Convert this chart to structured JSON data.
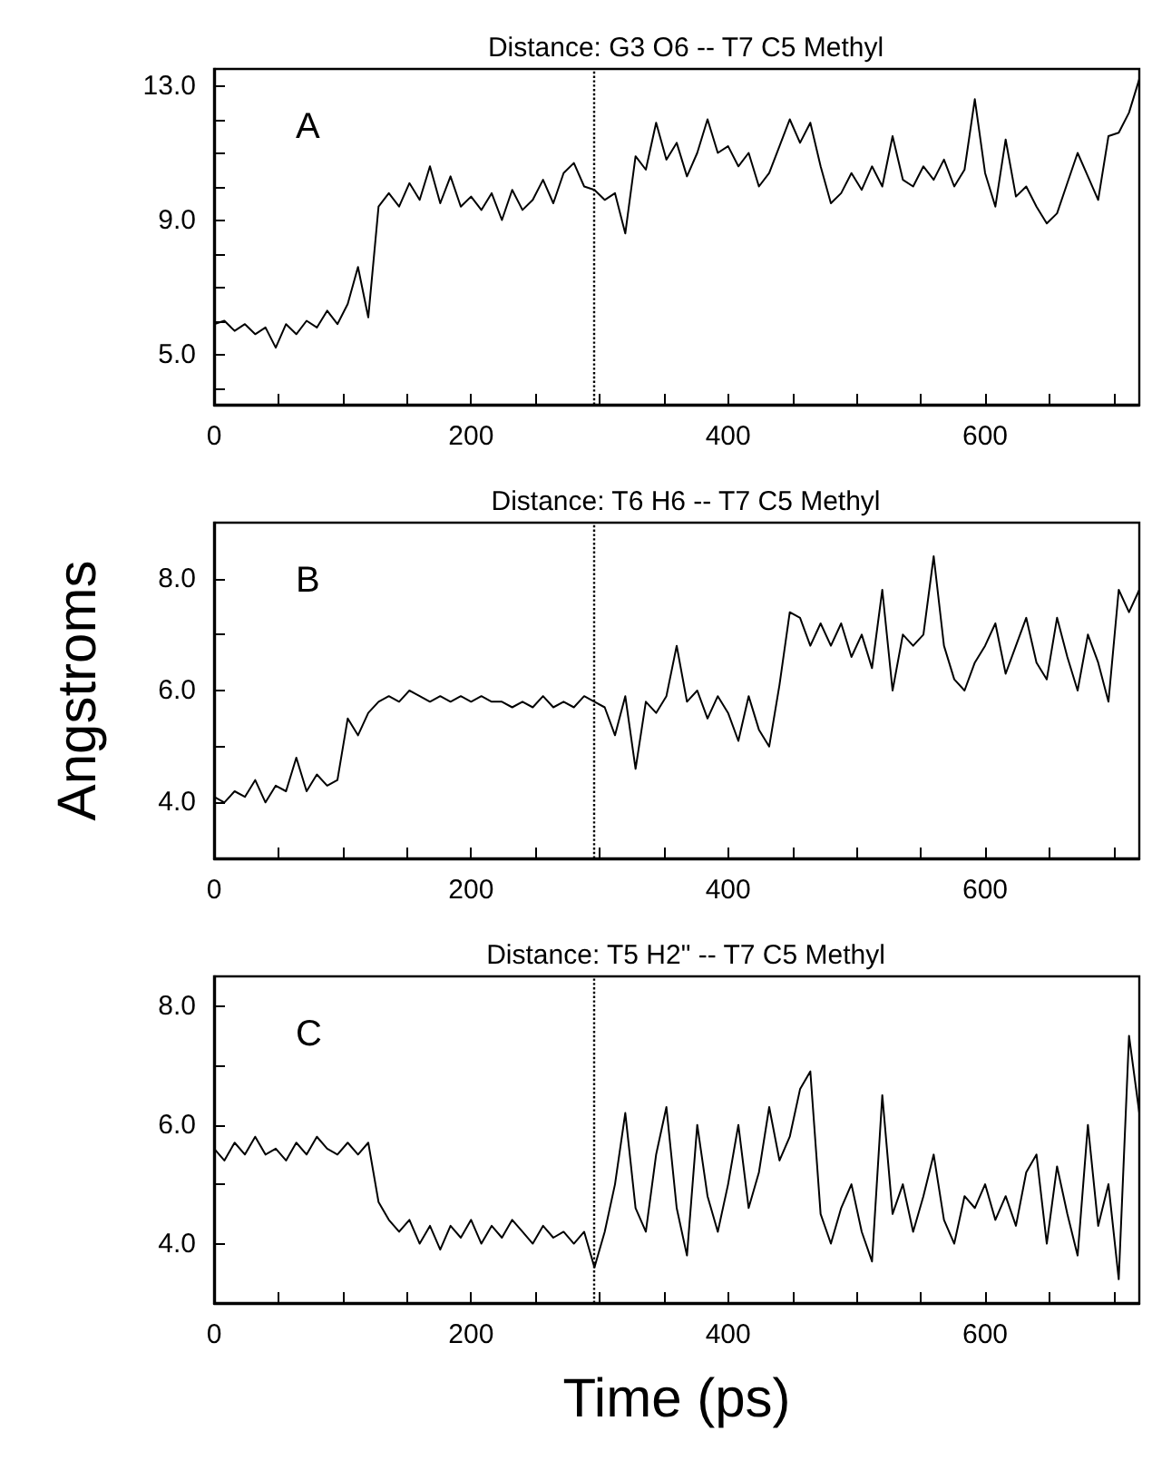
{
  "chart_data": [
    {
      "type": "line",
      "title": "Distance: G3 O6 -- T7 C5 Methyl",
      "annotations": [
        "A"
      ],
      "grid": false,
      "marker": "none",
      "line_style": "solid",
      "x": [
        0,
        8,
        16,
        24,
        32,
        40,
        48,
        56,
        64,
        72,
        80,
        88,
        96,
        104,
        112,
        120,
        128,
        136,
        144,
        152,
        160,
        168,
        176,
        184,
        192,
        200,
        208,
        216,
        224,
        232,
        240,
        248,
        256,
        264,
        272,
        280,
        288,
        296,
        304,
        312,
        320,
        328,
        336,
        344,
        352,
        360,
        368,
        376,
        384,
        392,
        400,
        408,
        416,
        424,
        432,
        440,
        448,
        456,
        464,
        472,
        480,
        488,
        496,
        504,
        512,
        520,
        528,
        536,
        544,
        552,
        560,
        568,
        576,
        584,
        592,
        600,
        608,
        616,
        624,
        632,
        640,
        648,
        656,
        664,
        672,
        680,
        688,
        696,
        704,
        712,
        720
      ],
      "series": [
        {
          "color": "#000000",
          "values": [
            5.9,
            6.0,
            5.7,
            5.9,
            5.6,
            5.8,
            5.2,
            5.9,
            5.6,
            6.0,
            5.8,
            6.3,
            5.9,
            6.5,
            7.6,
            6.1,
            9.4,
            9.8,
            9.4,
            10.1,
            9.6,
            10.6,
            9.5,
            10.3,
            9.4,
            9.7,
            9.3,
            9.8,
            9.0,
            9.9,
            9.3,
            9.6,
            10.2,
            9.5,
            10.4,
            10.7,
            10.0,
            9.9,
            9.6,
            9.8,
            8.6,
            10.9,
            10.5,
            11.9,
            10.8,
            11.3,
            10.3,
            11.0,
            12.0,
            11.0,
            11.2,
            10.6,
            11.0,
            10.0,
            10.4,
            11.2,
            12.0,
            11.3,
            11.9,
            10.6,
            9.5,
            9.8,
            10.4,
            9.9,
            10.6,
            10.0,
            11.5,
            10.2,
            10.0,
            10.6,
            10.2,
            10.8,
            10.0,
            10.5,
            12.6,
            10.4,
            9.4,
            11.4,
            9.7,
            10.0,
            9.4,
            8.9,
            9.2,
            10.1,
            11.0,
            10.3,
            9.6,
            11.5,
            11.6,
            12.2,
            13.2
          ]
        }
      ],
      "xlim": [
        0,
        720
      ],
      "xticks": [
        0,
        {
          "value": 50,
          "label": null
        },
        {
          "value": 100,
          "label": null
        },
        {
          "value": 150,
          "label": null
        },
        200,
        {
          "value": 250,
          "label": null
        },
        {
          "value": 300,
          "label": null
        },
        {
          "value": 350,
          "label": null
        },
        400,
        {
          "value": 450,
          "label": null
        },
        {
          "value": 500,
          "label": null
        },
        {
          "value": 550,
          "label": null
        },
        600,
        {
          "value": 650,
          "label": null
        },
        {
          "value": 700,
          "label": null
        }
      ],
      "ylim": [
        3.5,
        13.5
      ],
      "yticks": [
        {
          "value": 4,
          "label": null
        },
        {
          "value": 5,
          "label": "5.0"
        },
        {
          "value": 6,
          "label": null
        },
        {
          "value": 7,
          "label": null
        },
        {
          "value": 8,
          "label": null
        },
        {
          "value": 9,
          "label": "9.0"
        },
        {
          "value": 10,
          "label": null
        },
        {
          "value": 11,
          "label": null
        },
        {
          "value": 12,
          "label": null
        },
        {
          "value": 13,
          "label": "13.0"
        }
      ],
      "ref_lines": [
        {
          "axis": "x",
          "value": 295,
          "color": "#000000",
          "line_style": "dotted"
        }
      ]
    },
    {
      "type": "line",
      "title": "Distance: T6 H6 -- T7 C5 Methyl",
      "ylabel": "Angstroms",
      "annotations": [
        "B"
      ],
      "grid": false,
      "marker": "none",
      "line_style": "solid",
      "x": [
        0,
        8,
        16,
        24,
        32,
        40,
        48,
        56,
        64,
        72,
        80,
        88,
        96,
        104,
        112,
        120,
        128,
        136,
        144,
        152,
        160,
        168,
        176,
        184,
        192,
        200,
        208,
        216,
        224,
        232,
        240,
        248,
        256,
        264,
        272,
        280,
        288,
        296,
        304,
        312,
        320,
        328,
        336,
        344,
        352,
        360,
        368,
        376,
        384,
        392,
        400,
        408,
        416,
        424,
        432,
        440,
        448,
        456,
        464,
        472,
        480,
        488,
        496,
        504,
        512,
        520,
        528,
        536,
        544,
        552,
        560,
        568,
        576,
        584,
        592,
        600,
        608,
        616,
        624,
        632,
        640,
        648,
        656,
        664,
        672,
        680,
        688,
        696,
        704,
        712,
        720
      ],
      "series": [
        {
          "color": "#000000",
          "values": [
            4.1,
            4.0,
            4.2,
            4.1,
            4.4,
            4.0,
            4.3,
            4.2,
            4.8,
            4.2,
            4.5,
            4.3,
            4.4,
            5.5,
            5.2,
            5.6,
            5.8,
            5.9,
            5.8,
            6.0,
            5.9,
            5.8,
            5.9,
            5.8,
            5.9,
            5.8,
            5.9,
            5.8,
            5.8,
            5.7,
            5.8,
            5.7,
            5.9,
            5.7,
            5.8,
            5.7,
            5.9,
            5.8,
            5.7,
            5.2,
            5.9,
            4.6,
            5.8,
            5.6,
            5.9,
            6.8,
            5.8,
            6.0,
            5.5,
            5.9,
            5.6,
            5.1,
            5.9,
            5.3,
            5.0,
            6.1,
            7.4,
            7.3,
            6.8,
            7.2,
            6.8,
            7.2,
            6.6,
            7.0,
            6.4,
            7.8,
            6.0,
            7.0,
            6.8,
            7.0,
            8.4,
            6.8,
            6.2,
            6.0,
            6.5,
            6.8,
            7.2,
            6.3,
            6.8,
            7.3,
            6.5,
            6.2,
            7.3,
            6.6,
            6.0,
            7.0,
            6.5,
            5.8,
            7.8,
            7.4,
            7.8
          ]
        }
      ],
      "xlim": [
        0,
        720
      ],
      "xticks": [
        0,
        {
          "value": 50,
          "label": null
        },
        {
          "value": 100,
          "label": null
        },
        {
          "value": 150,
          "label": null
        },
        200,
        {
          "value": 250,
          "label": null
        },
        {
          "value": 300,
          "label": null
        },
        {
          "value": 350,
          "label": null
        },
        400,
        {
          "value": 450,
          "label": null
        },
        {
          "value": 500,
          "label": null
        },
        {
          "value": 550,
          "label": null
        },
        600,
        {
          "value": 650,
          "label": null
        },
        {
          "value": 700,
          "label": null
        }
      ],
      "ylim": [
        3,
        9
      ],
      "yticks": [
        {
          "value": 4,
          "label": "4.0"
        },
        {
          "value": 5,
          "label": null
        },
        {
          "value": 6,
          "label": "6.0"
        },
        {
          "value": 7,
          "label": null
        },
        {
          "value": 8,
          "label": "8.0"
        }
      ],
      "ref_lines": [
        {
          "axis": "x",
          "value": 295,
          "color": "#000000",
          "line_style": "dotted"
        }
      ]
    },
    {
      "type": "line",
      "title": "Distance: T5 H2\" -- T7 C5 Methyl",
      "xlabel": "Time (ps)",
      "annotations": [
        "C"
      ],
      "grid": false,
      "marker": "none",
      "line_style": "solid",
      "x": [
        0,
        8,
        16,
        24,
        32,
        40,
        48,
        56,
        64,
        72,
        80,
        88,
        96,
        104,
        112,
        120,
        128,
        136,
        144,
        152,
        160,
        168,
        176,
        184,
        192,
        200,
        208,
        216,
        224,
        232,
        240,
        248,
        256,
        264,
        272,
        280,
        288,
        296,
        304,
        312,
        320,
        328,
        336,
        344,
        352,
        360,
        368,
        376,
        384,
        392,
        400,
        408,
        416,
        424,
        432,
        440,
        448,
        456,
        464,
        472,
        480,
        488,
        496,
        504,
        512,
        520,
        528,
        536,
        544,
        552,
        560,
        568,
        576,
        584,
        592,
        600,
        608,
        616,
        624,
        632,
        640,
        648,
        656,
        664,
        672,
        680,
        688,
        696,
        704,
        712,
        720
      ],
      "series": [
        {
          "color": "#000000",
          "values": [
            5.6,
            5.4,
            5.7,
            5.5,
            5.8,
            5.5,
            5.6,
            5.4,
            5.7,
            5.5,
            5.8,
            5.6,
            5.5,
            5.7,
            5.5,
            5.7,
            4.7,
            4.4,
            4.2,
            4.4,
            4.0,
            4.3,
            3.9,
            4.3,
            4.1,
            4.4,
            4.0,
            4.3,
            4.1,
            4.4,
            4.2,
            4.0,
            4.3,
            4.1,
            4.2,
            4.0,
            4.2,
            3.6,
            4.2,
            5.0,
            6.2,
            4.6,
            4.2,
            5.5,
            6.3,
            4.6,
            3.8,
            6.0,
            4.8,
            4.2,
            5.0,
            6.0,
            4.6,
            5.2,
            6.3,
            5.4,
            5.8,
            6.6,
            6.9,
            4.5,
            4.0,
            4.6,
            5.0,
            4.2,
            3.7,
            6.5,
            4.5,
            5.0,
            4.2,
            4.8,
            5.5,
            4.4,
            4.0,
            4.8,
            4.6,
            5.0,
            4.4,
            4.8,
            4.3,
            5.2,
            5.5,
            4.0,
            5.3,
            4.5,
            3.8,
            6.0,
            4.3,
            5.0,
            3.4,
            7.5,
            6.2
          ]
        }
      ],
      "xlim": [
        0,
        720
      ],
      "xticks": [
        0,
        {
          "value": 50,
          "label": null
        },
        {
          "value": 100,
          "label": null
        },
        {
          "value": 150,
          "label": null
        },
        200,
        {
          "value": 250,
          "label": null
        },
        {
          "value": 300,
          "label": null
        },
        {
          "value": 350,
          "label": null
        },
        400,
        {
          "value": 450,
          "label": null
        },
        {
          "value": 500,
          "label": null
        },
        {
          "value": 550,
          "label": null
        },
        600,
        {
          "value": 650,
          "label": null
        },
        {
          "value": 700,
          "label": null
        }
      ],
      "ylim": [
        3,
        8.5
      ],
      "yticks": [
        {
          "value": 4,
          "label": "4.0"
        },
        {
          "value": 5,
          "label": null
        },
        {
          "value": 6,
          "label": "6.0"
        },
        {
          "value": 7,
          "label": null
        },
        {
          "value": 8,
          "label": "8.0"
        }
      ],
      "ref_lines": [
        {
          "axis": "x",
          "value": 295,
          "color": "#000000",
          "line_style": "dotted"
        }
      ]
    }
  ]
}
